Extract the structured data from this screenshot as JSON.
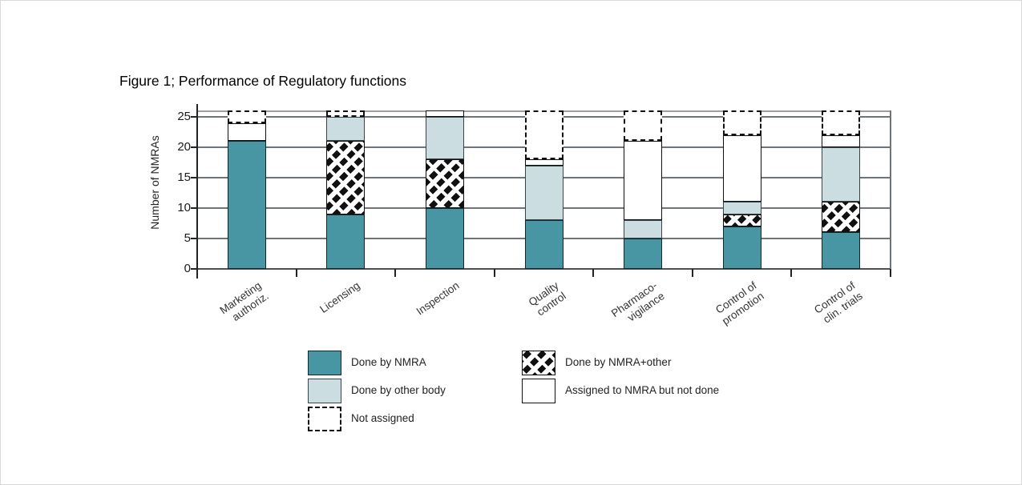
{
  "figure": {
    "title": "Figure 1; Performance of Regulatory functions"
  },
  "chart_data": {
    "type": "stacked-bar",
    "title": "Figure 1; Performance of Regulatory functions",
    "xlabel": "",
    "ylabel": "Number of NMRAs",
    "ylim": [
      0,
      26.5
    ],
    "yticks": [
      0,
      5,
      10,
      15,
      20,
      25
    ],
    "grid": "horizontal",
    "legend_position": "bottom",
    "categories": [
      "Marketing\nauthoriz.",
      "Licensing",
      "Inspection",
      "Quality\ncontrol",
      "Pharmaco-\nvigilance",
      "Control of\npromotion",
      "Control of\nclin. trials"
    ],
    "series": [
      {
        "name": "Done by NMRA",
        "style": "nmra",
        "values": [
          21,
          9,
          10,
          8,
          5,
          7,
          6
        ]
      },
      {
        "name": "Done by NMRA+other",
        "style": "nmra_other",
        "values": [
          0,
          12,
          8,
          0,
          0,
          2,
          5
        ]
      },
      {
        "name": "Done by other body",
        "style": "other_body",
        "values": [
          0,
          4,
          7,
          9,
          3,
          2,
          9
        ]
      },
      {
        "name": "Assigned to NMRA but not done",
        "style": "assigned_not_done",
        "values": [
          3,
          0,
          1,
          1,
          13,
          11,
          2
        ]
      },
      {
        "name": "Not assigned",
        "style": "not_assigned",
        "values": [
          2,
          1,
          0,
          8,
          5,
          4,
          4
        ]
      }
    ],
    "colors": {
      "nmra": "#4896a4",
      "other_body": "#ccdde2",
      "hatch": "#111111",
      "gridline": "#6e757a"
    }
  },
  "legend": {
    "columns": [
      {
        "items": [
          {
            "label": "Done by NMRA",
            "style": "nmra"
          },
          {
            "label": "Done by other body",
            "style": "other_body"
          },
          {
            "label": "Not assigned",
            "style": "not_assigned"
          }
        ]
      },
      {
        "items": [
          {
            "label": "Done by NMRA+other",
            "style": "nmra_other"
          },
          {
            "label": "Assigned to NMRA but not done",
            "style": "assigned_not_done"
          }
        ]
      }
    ]
  }
}
